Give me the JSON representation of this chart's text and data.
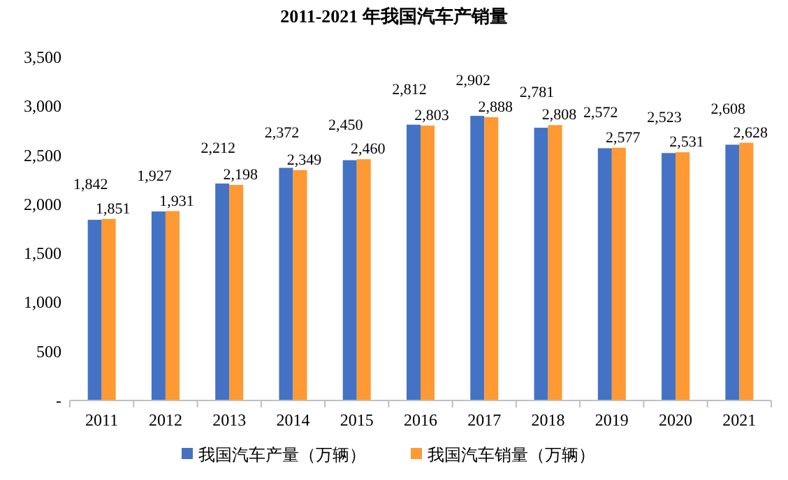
{
  "chart_data": {
    "type": "bar",
    "title": "2011-2021 年我国汽车产销量",
    "categories": [
      "2011",
      "2012",
      "2013",
      "2014",
      "2015",
      "2016",
      "2017",
      "2018",
      "2019",
      "2020",
      "2021"
    ],
    "series": [
      {
        "name": "我国汽车产量（万辆）",
        "color": "#4472c4",
        "values": [
          1842,
          1927,
          2212,
          2372,
          2450,
          2812,
          2902,
          2781,
          2572,
          2523,
          2608
        ],
        "value_labels": [
          "1,842",
          "1,927",
          "2,212",
          "2,372",
          "2,450",
          "2,812",
          "2,902",
          "2,781",
          "2,572",
          "2,523",
          "2,608"
        ]
      },
      {
        "name": "我国汽车销量（万辆）",
        "color": "#ff9933",
        "values": [
          1851,
          1931,
          2198,
          2349,
          2460,
          2803,
          2888,
          2808,
          2577,
          2531,
          2628
        ],
        "value_labels": [
          "1,851",
          "1,931",
          "2,198",
          "2,349",
          "2,460",
          "2,803",
          "2,888",
          "2,808",
          "2,577",
          "2,531",
          "2,628"
        ]
      }
    ],
    "ylim": [
      0,
      3500
    ],
    "yticks": [
      {
        "value": 0,
        "label": "-"
      },
      {
        "value": 500,
        "label": "500"
      },
      {
        "value": 1000,
        "label": "1,000"
      },
      {
        "value": 1500,
        "label": "1,500"
      },
      {
        "value": 2000,
        "label": "2,000"
      },
      {
        "value": 2500,
        "label": "2,500"
      },
      {
        "value": 3000,
        "label": "3,000"
      },
      {
        "value": 3500,
        "label": "3,500"
      }
    ],
    "grid": false,
    "legend": "bottom"
  }
}
